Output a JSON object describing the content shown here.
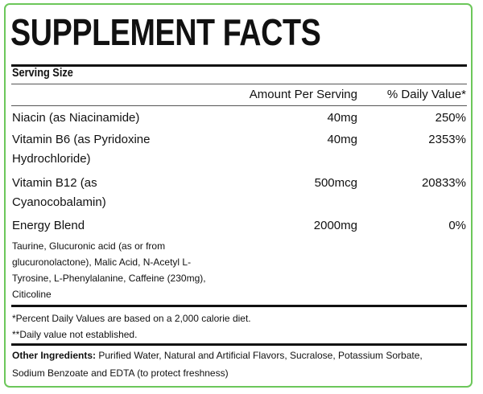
{
  "title": "SUPPLEMENT FACTS",
  "serving_size_label": "Serving Size",
  "columns": {
    "amount": "Amount Per Serving",
    "daily_value": "% Daily Value*"
  },
  "rows": [
    {
      "name_lines": [
        "Niacin (as Niacinamide)"
      ],
      "amount": "40mg",
      "dv": "250%"
    },
    {
      "name_lines": [
        "Vitamin B6 (as Pyridoxine",
        "Hydrochloride)"
      ],
      "amount": "40mg",
      "dv": "2353%"
    },
    {
      "name_lines": [
        "Vitamin B12 (as",
        "Cyanocobalamin)"
      ],
      "amount": "500mcg",
      "dv": "20833%"
    },
    {
      "name_lines": [
        "Energy Blend"
      ],
      "amount": "2000mg",
      "dv": "0%"
    }
  ],
  "blend_ingredients": [
    "Taurine, Glucuronic acid (as or from",
    "glucuronolactone), Malic Acid, N-Acetyl L-",
    "Tyrosine, L-Phenylalanine, Caffeine (230mg),",
    "Citicoline"
  ],
  "footnotes": [
    "*Percent Daily Values are based on a 2,000 calorie diet.",
    "**Daily value not established."
  ],
  "other_ingredients": {
    "label": "Other Ingredients:",
    "line1": " Purified Water, Natural and Artificial Flavors, Sucralose, Potassium Sorbate,",
    "line2": "Sodium Benzoate and EDTA (to protect freshness)"
  },
  "colors": {
    "border": "#6cc75a",
    "text": "#111111"
  }
}
